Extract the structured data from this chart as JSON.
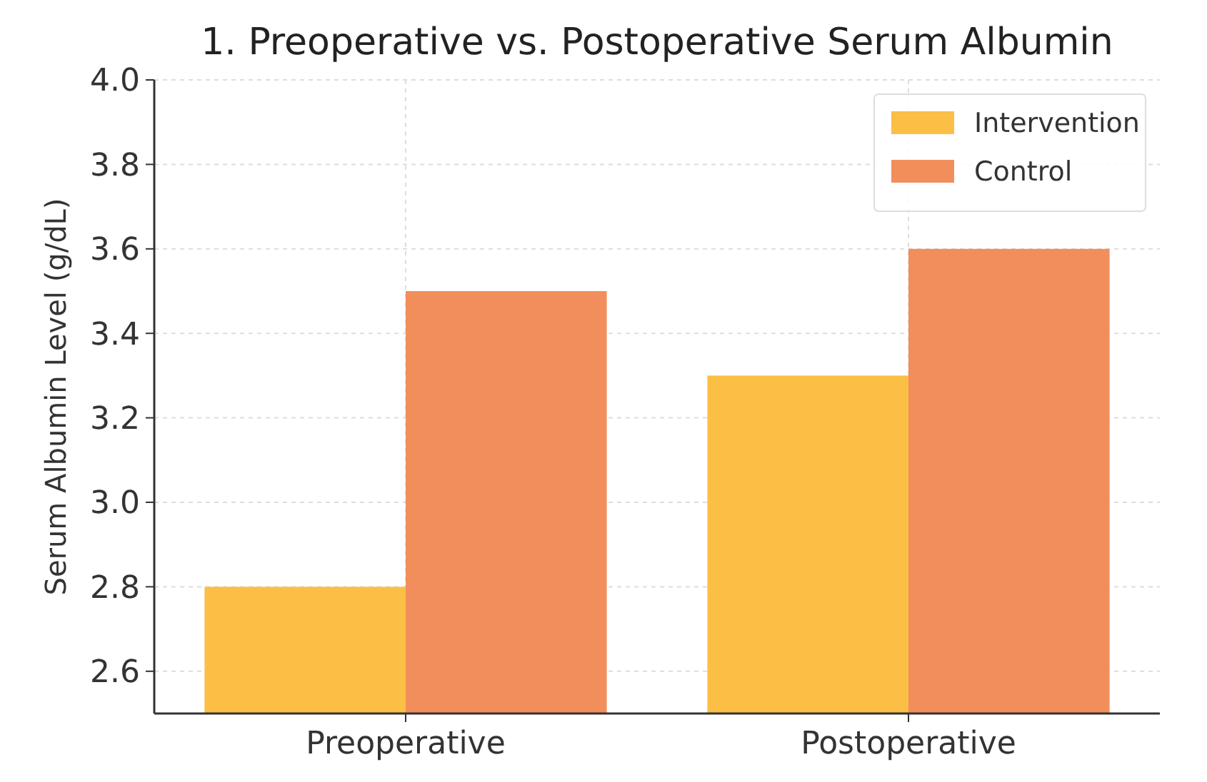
{
  "chart_data": {
    "type": "bar",
    "title": "1. Preoperative vs. Postoperative Serum Albumin",
    "ylabel": "Serum Albumin Level (g/dL)",
    "categories": [
      "Preoperative",
      "Postoperative"
    ],
    "series": [
      {
        "name": "Intervention",
        "color": "#fbbf45",
        "values": [
          2.8,
          3.3
        ]
      },
      {
        "name": "Control",
        "color": "#f28e5b",
        "values": [
          3.5,
          3.6
        ]
      }
    ],
    "ylim": [
      2.5,
      4.0
    ],
    "yticks": [
      {
        "value": 2.6,
        "label": "2.6"
      },
      {
        "value": 2.8,
        "label": "2.8"
      },
      {
        "value": 3.0,
        "label": "3.0"
      },
      {
        "value": 3.2,
        "label": "3.2"
      },
      {
        "value": 3.4,
        "label": "3.4"
      },
      {
        "value": 3.6,
        "label": "3.6"
      },
      {
        "value": 3.8,
        "label": "3.8"
      },
      {
        "value": 4.0,
        "label": "4.0"
      }
    ],
    "grid": true,
    "legend": "top right"
  }
}
